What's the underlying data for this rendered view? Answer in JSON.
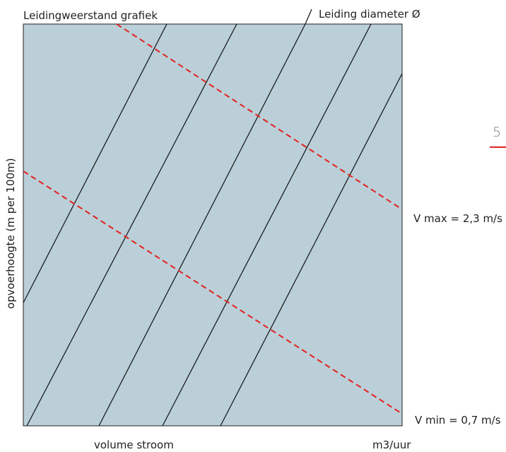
{
  "title": "Leidingweerstand grafiek",
  "diameter_label": "Leiding diameter Ø",
  "x_axis_label": "volume stroom",
  "x_axis_unit": "m3/uur",
  "y_axis_label": "opvoerhoogte (m per 100m)",
  "vmax_label": "V max = 2,3 m/s",
  "vmin_label": "V min = 0,7 m/s",
  "page_number": "5",
  "colors": {
    "plot_background": "#bacfd8",
    "diameter_lines": "#111111",
    "velocity_lines": "#e3211f",
    "page_marker": "#e3211f"
  }
}
